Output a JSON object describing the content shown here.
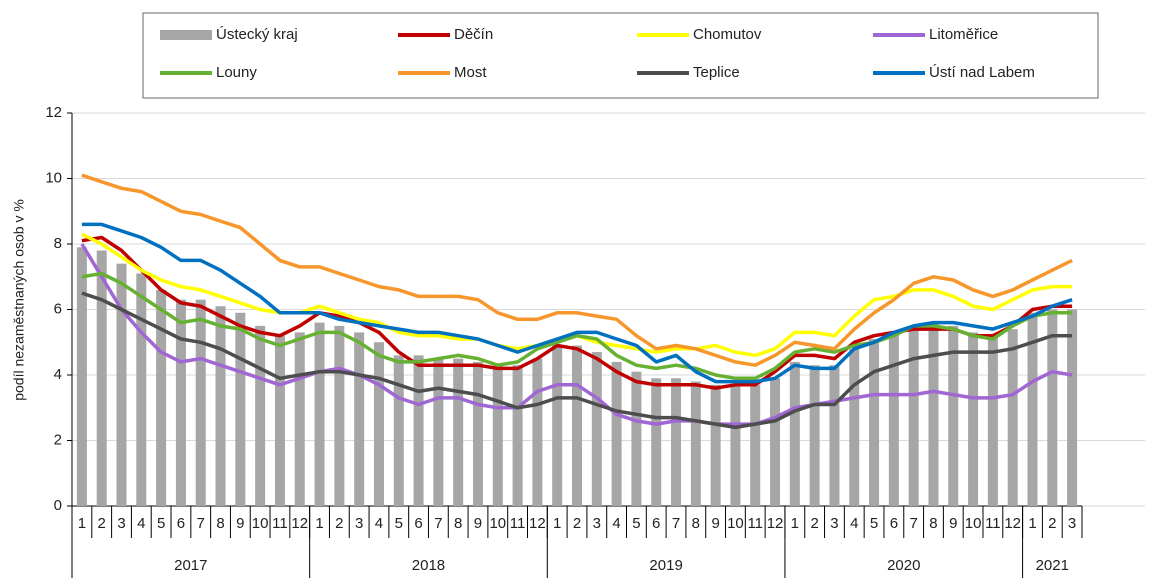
{
  "chart_data": {
    "type": "bar",
    "y_label": "podíl nezaměstnaných osob v %",
    "categories": [
      "1",
      "2",
      "3",
      "4",
      "5",
      "6",
      "7",
      "8",
      "9",
      "10",
      "11",
      "12",
      "1",
      "2",
      "3",
      "4",
      "5",
      "6",
      "7",
      "8",
      "9",
      "10",
      "11",
      "12",
      "1",
      "2",
      "3",
      "4",
      "5",
      "6",
      "7",
      "8",
      "9",
      "10",
      "11",
      "12",
      "1",
      "2",
      "3",
      "4",
      "5",
      "6",
      "7",
      "8",
      "9",
      "10",
      "11",
      "12",
      "1",
      "2",
      "3"
    ],
    "years": [
      "2017",
      "2018",
      "2019",
      "2020",
      "2021"
    ],
    "ylim": [
      0,
      12
    ],
    "yticks": [
      0,
      2,
      4,
      6,
      8,
      10,
      12
    ],
    "grid": true,
    "series": [
      {
        "name": "Ústecký kraj",
        "type": "bar",
        "color": "#a6a6a6",
        "values": [
          7.9,
          7.8,
          7.4,
          7.1,
          6.6,
          6.3,
          6.3,
          6.1,
          5.9,
          5.5,
          5.2,
          5.3,
          5.6,
          5.5,
          5.3,
          5.0,
          4.6,
          4.6,
          4.5,
          4.5,
          4.4,
          4.3,
          4.3,
          4.5,
          4.9,
          4.9,
          4.7,
          4.4,
          4.1,
          3.9,
          3.9,
          3.8,
          3.7,
          3.7,
          3.7,
          3.9,
          4.4,
          4.3,
          4.3,
          4.8,
          5.1,
          5.3,
          5.5,
          5.6,
          5.5,
          5.3,
          5.2,
          5.4,
          5.9,
          6.0,
          6.0
        ]
      },
      {
        "name": "Děčín",
        "type": "line",
        "color": "#c00000",
        "values": [
          8.1,
          8.2,
          7.8,
          7.2,
          6.6,
          6.2,
          6.1,
          5.8,
          5.5,
          5.3,
          5.2,
          5.5,
          5.9,
          5.8,
          5.6,
          5.3,
          4.7,
          4.3,
          4.3,
          4.3,
          4.3,
          4.2,
          4.2,
          4.5,
          4.9,
          4.8,
          4.5,
          4.1,
          3.8,
          3.7,
          3.7,
          3.7,
          3.6,
          3.7,
          3.7,
          4.1,
          4.6,
          4.6,
          4.5,
          5.0,
          5.2,
          5.3,
          5.4,
          5.4,
          5.4,
          5.2,
          5.2,
          5.5,
          6.0,
          6.1,
          6.1
        ]
      },
      {
        "name": "Chomutov",
        "type": "line",
        "color": "#ffff00",
        "values": [
          8.3,
          8.0,
          7.6,
          7.2,
          6.9,
          6.7,
          6.6,
          6.4,
          6.2,
          6.0,
          5.9,
          5.9,
          6.1,
          5.9,
          5.7,
          5.6,
          5.3,
          5.2,
          5.2,
          5.1,
          5.1,
          4.9,
          4.8,
          4.9,
          5.1,
          5.2,
          5.0,
          4.9,
          4.8,
          4.7,
          4.8,
          4.8,
          4.9,
          4.7,
          4.6,
          4.8,
          5.3,
          5.3,
          5.2,
          5.8,
          6.3,
          6.4,
          6.6,
          6.6,
          6.4,
          6.1,
          6.0,
          6.3,
          6.6,
          6.7,
          6.7
        ]
      },
      {
        "name": "Litoměřice",
        "type": "line",
        "color": "#a066d3",
        "values": [
          8.0,
          7.0,
          6.0,
          5.3,
          4.7,
          4.4,
          4.5,
          4.3,
          4.1,
          3.9,
          3.7,
          3.9,
          4.1,
          4.2,
          4.0,
          3.7,
          3.3,
          3.1,
          3.3,
          3.3,
          3.1,
          3.0,
          3.0,
          3.5,
          3.7,
          3.7,
          3.3,
          2.8,
          2.6,
          2.5,
          2.6,
          2.6,
          2.5,
          2.5,
          2.5,
          2.7,
          3.0,
          3.1,
          3.2,
          3.3,
          3.4,
          3.4,
          3.4,
          3.5,
          3.4,
          3.3,
          3.3,
          3.4,
          3.8,
          4.1,
          4.0
        ]
      },
      {
        "name": "Louny",
        "type": "line",
        "color": "#66b032",
        "values": [
          7.0,
          7.1,
          6.8,
          6.4,
          6.0,
          5.6,
          5.7,
          5.5,
          5.4,
          5.1,
          4.9,
          5.1,
          5.3,
          5.3,
          5.0,
          4.6,
          4.4,
          4.4,
          4.5,
          4.6,
          4.5,
          4.3,
          4.4,
          4.8,
          5.0,
          5.2,
          5.1,
          4.6,
          4.3,
          4.2,
          4.3,
          4.2,
          4.0,
          3.9,
          3.9,
          4.2,
          4.7,
          4.8,
          4.7,
          4.9,
          5.0,
          5.2,
          5.5,
          5.5,
          5.4,
          5.2,
          5.1,
          5.5,
          5.8,
          5.9,
          5.9
        ]
      },
      {
        "name": "Most",
        "type": "line",
        "color": "#f7962b",
        "values": [
          10.1,
          9.9,
          9.7,
          9.6,
          9.3,
          9.0,
          8.9,
          8.7,
          8.5,
          8.0,
          7.5,
          7.3,
          7.3,
          7.1,
          6.9,
          6.7,
          6.6,
          6.4,
          6.4,
          6.4,
          6.3,
          5.9,
          5.7,
          5.7,
          5.9,
          5.9,
          5.8,
          5.7,
          5.2,
          4.8,
          4.9,
          4.8,
          4.6,
          4.4,
          4.3,
          4.6,
          5.0,
          4.9,
          4.8,
          5.4,
          5.9,
          6.3,
          6.8,
          7.0,
          6.9,
          6.6,
          6.4,
          6.6,
          6.9,
          7.2,
          7.5
        ]
      },
      {
        "name": "Teplice",
        "type": "line",
        "color": "#4d4d4d",
        "values": [
          6.5,
          6.3,
          6.0,
          5.7,
          5.4,
          5.1,
          5.0,
          4.8,
          4.5,
          4.2,
          3.9,
          4.0,
          4.1,
          4.1,
          4.0,
          3.9,
          3.7,
          3.5,
          3.6,
          3.5,
          3.4,
          3.2,
          3.0,
          3.1,
          3.3,
          3.3,
          3.1,
          2.9,
          2.8,
          2.7,
          2.7,
          2.6,
          2.5,
          2.4,
          2.5,
          2.6,
          2.9,
          3.1,
          3.1,
          3.7,
          4.1,
          4.3,
          4.5,
          4.6,
          4.7,
          4.7,
          4.7,
          4.8,
          5.0,
          5.2,
          5.2
        ]
      },
      {
        "name": "Ústí nad Labem",
        "type": "line",
        "color": "#0070c0",
        "values": [
          8.6,
          8.6,
          8.4,
          8.2,
          7.9,
          7.5,
          7.5,
          7.2,
          6.8,
          6.4,
          5.9,
          5.9,
          5.9,
          5.7,
          5.6,
          5.5,
          5.4,
          5.3,
          5.3,
          5.2,
          5.1,
          4.9,
          4.7,
          4.9,
          5.1,
          5.3,
          5.3,
          5.1,
          4.9,
          4.4,
          4.6,
          4.1,
          3.8,
          3.8,
          3.8,
          3.9,
          4.3,
          4.2,
          4.2,
          4.8,
          5.0,
          5.3,
          5.5,
          5.6,
          5.6,
          5.5,
          5.4,
          5.6,
          5.8,
          6.1,
          6.3
        ]
      }
    ]
  }
}
